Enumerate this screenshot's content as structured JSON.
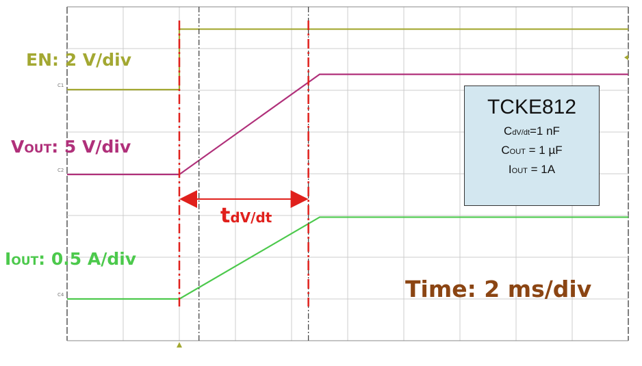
{
  "chart_data": {
    "type": "line",
    "title": "",
    "time_scale": {
      "label": "Time: 2 ms/div",
      "ms_per_div": 2,
      "divisions": 10
    },
    "vertical_divisions": 8,
    "grid": true,
    "series": [
      {
        "name": "EN",
        "label": "EN: 2 V/div",
        "unit": "V",
        "per_div": 2,
        "marker": "C1",
        "color": "#a3a832",
        "points": [
          [
            0,
            0
          ],
          [
            4.0,
            0
          ],
          [
            4.0,
            2.9
          ],
          [
            20,
            2.9
          ]
        ]
      },
      {
        "name": "VOUT",
        "label_main": "V",
        "label_sub": "OUT",
        "label_rest": ": 5 V/div",
        "unit": "V",
        "per_div": 5,
        "marker": "C2",
        "color": "#b0307a",
        "points": [
          [
            0,
            0
          ],
          [
            4.0,
            0
          ],
          [
            9.0,
            12
          ],
          [
            20,
            12
          ]
        ]
      },
      {
        "name": "IOUT",
        "label_main": "I",
        "label_sub": "OUT",
        "label_rest": ": 0.5 A/div",
        "unit": "A",
        "per_div": 0.5,
        "marker": "C4",
        "color": "#4cc94c",
        "points": [
          [
            0,
            0
          ],
          [
            4.0,
            0
          ],
          [
            9.0,
            0.98
          ],
          [
            20,
            0.98
          ]
        ]
      }
    ],
    "red_markers_ms": [
      4.0,
      8.6
    ],
    "cursors_ms": [
      4.7,
      8.6
    ],
    "annotation": {
      "main": "t",
      "sub": "dV/dt",
      "color": "#e0201c"
    }
  },
  "info_box": {
    "title": "TCKE812",
    "rows": [
      {
        "main": "C",
        "sub": "dV/dt",
        "rest": "=1 nF"
      },
      {
        "main": "C",
        "sub": "OUT",
        "rest": " = 1 µF"
      },
      {
        "main": "I",
        "sub": "OUT",
        "rest": " = 1A"
      }
    ]
  },
  "time_color": "#8b4513"
}
